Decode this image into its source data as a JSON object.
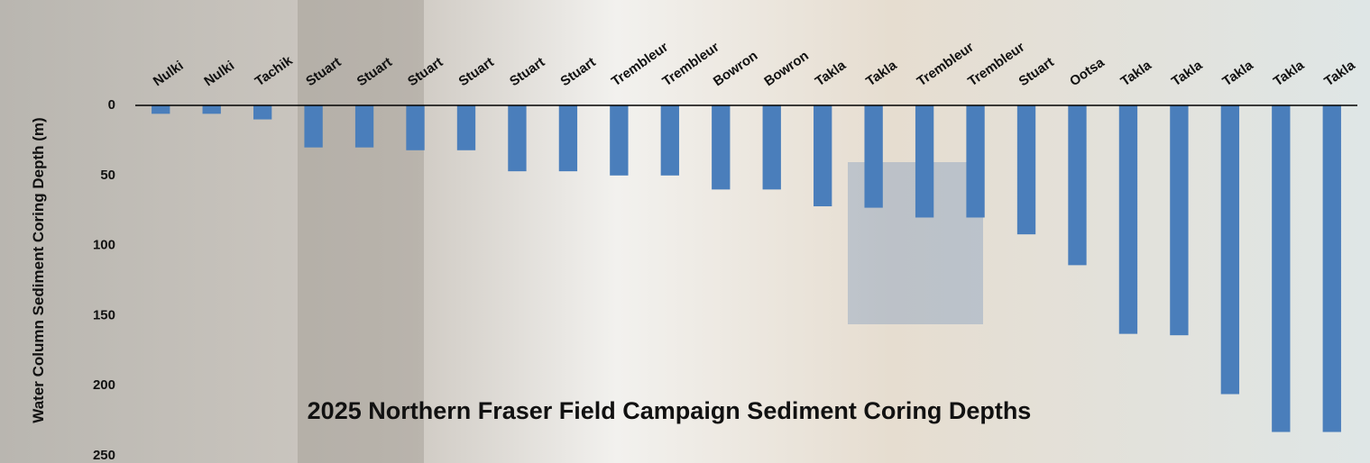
{
  "chart_data": {
    "type": "bar",
    "title": "2025 Northern Fraser Field Campaign Sediment Coring Depths",
    "y_label": "Water Column Sediment Coring Depth (m)",
    "categories": [
      "Nulki",
      "Nulki",
      "Tachik",
      "Stuart",
      "Stuart",
      "Stuart",
      "Stuart",
      "Stuart",
      "Stuart",
      "Trembleur",
      "Trembleur",
      "Bowron",
      "Bowron",
      "Takla",
      "Takla",
      "Trembleur",
      "Trembleur",
      "Stuart",
      "Ootsa",
      "Takla",
      "Takla",
      "Takla",
      "Takla",
      "Takla"
    ],
    "values": [
      6,
      6,
      10,
      30,
      30,
      32,
      32,
      47,
      47,
      50,
      50,
      60,
      60,
      72,
      73,
      80,
      80,
      92,
      114,
      163,
      164,
      206,
      233,
      233
    ],
    "color": "#4a7ebb",
    "ylim": [
      0,
      250
    ],
    "yticks": [
      0,
      50,
      100,
      150,
      200,
      250
    ],
    "y_inverted": true,
    "grid": false
  }
}
